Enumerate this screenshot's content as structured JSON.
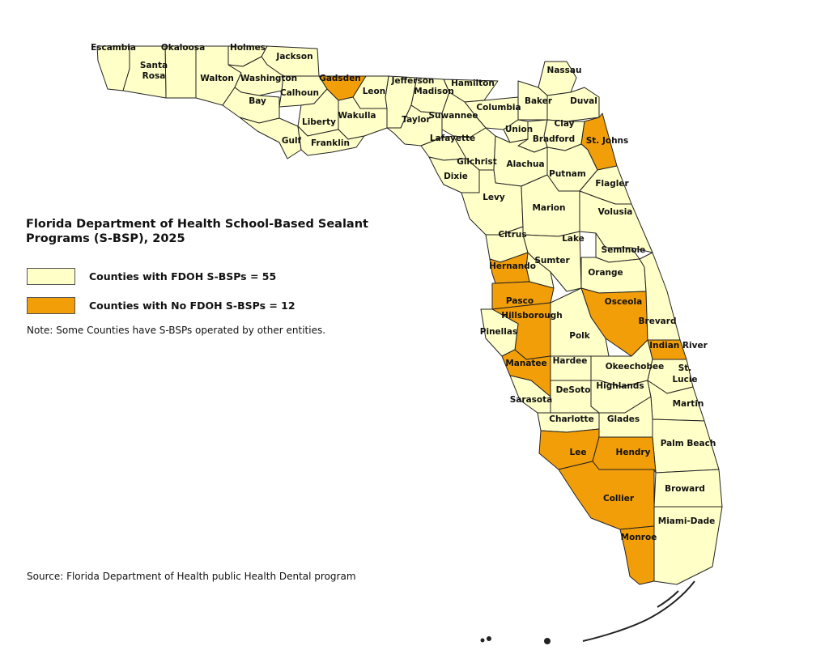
{
  "title": "Florida Department of Health School-Based Sealant Programs (S-BSP), 2025",
  "legend": [
    {
      "label": "Counties with  FDOH S-BSPs = 55",
      "color": "#ffffc8"
    },
    {
      "label": "Counties with No FDOH S-BSPs = 12",
      "color": "#f29e09"
    }
  ],
  "note": "Note: Some Counties have S-BSPs operated by other entities.",
  "source": "Source: Florida Department of Health public Health Dental program",
  "colors": {
    "with_program": "#ffffc8",
    "without_program": "#f29e09",
    "border": "#222222"
  },
  "counties": [
    {
      "name": "Escambia",
      "program": true
    },
    {
      "name": "Okaloosa",
      "program": true
    },
    {
      "name": "Santa Rosa",
      "program": true
    },
    {
      "name": "Holmes",
      "program": true
    },
    {
      "name": "Jackson",
      "program": true
    },
    {
      "name": "Walton",
      "program": true
    },
    {
      "name": "Washington",
      "program": true
    },
    {
      "name": "Gadsden",
      "program": false
    },
    {
      "name": "Jefferson",
      "program": true
    },
    {
      "name": "Hamilton",
      "program": true
    },
    {
      "name": "Nassau",
      "program": true
    },
    {
      "name": "Bay",
      "program": true
    },
    {
      "name": "Calhoun",
      "program": true
    },
    {
      "name": "Leon",
      "program": true
    },
    {
      "name": "Madison",
      "program": true
    },
    {
      "name": "Columbia",
      "program": true
    },
    {
      "name": "Baker",
      "program": true
    },
    {
      "name": "Duval",
      "program": true
    },
    {
      "name": "Liberty",
      "program": true
    },
    {
      "name": "Wakulla",
      "program": true
    },
    {
      "name": "Taylor",
      "program": true
    },
    {
      "name": "Suwannee",
      "program": true
    },
    {
      "name": "Union",
      "program": true
    },
    {
      "name": "Clay",
      "program": true
    },
    {
      "name": "St. Johns",
      "program": false
    },
    {
      "name": "Gulf",
      "program": true
    },
    {
      "name": "Franklin",
      "program": true
    },
    {
      "name": "Lafayette",
      "program": true
    },
    {
      "name": "Bradford",
      "program": true
    },
    {
      "name": "Gilchrist",
      "program": true
    },
    {
      "name": "Alachua",
      "program": true
    },
    {
      "name": "Dixie",
      "program": true
    },
    {
      "name": "Putnam",
      "program": true
    },
    {
      "name": "Flagler",
      "program": true
    },
    {
      "name": "Levy",
      "program": true
    },
    {
      "name": "Marion",
      "program": true
    },
    {
      "name": "Volusia",
      "program": true
    },
    {
      "name": "Citrus",
      "program": true
    },
    {
      "name": "Lake",
      "program": true
    },
    {
      "name": "Seminole",
      "program": true
    },
    {
      "name": "Sumter",
      "program": true
    },
    {
      "name": "Hernando",
      "program": false
    },
    {
      "name": "Orange",
      "program": true
    },
    {
      "name": "Pasco",
      "program": false
    },
    {
      "name": "Osceola",
      "program": false
    },
    {
      "name": "Hillsborough",
      "program": false
    },
    {
      "name": "Brevard",
      "program": true
    },
    {
      "name": "Pinellas",
      "program": true
    },
    {
      "name": "Polk",
      "program": true
    },
    {
      "name": "Indian River",
      "program": false
    },
    {
      "name": "Manatee",
      "program": false
    },
    {
      "name": "Hardee",
      "program": true
    },
    {
      "name": "Okeechobee",
      "program": true
    },
    {
      "name": "St. Lucie",
      "program": true
    },
    {
      "name": "Highlands",
      "program": true
    },
    {
      "name": "DeSoto",
      "program": true
    },
    {
      "name": "Sarasota",
      "program": true
    },
    {
      "name": "Martin",
      "program": true
    },
    {
      "name": "Charlotte",
      "program": true
    },
    {
      "name": "Glades",
      "program": true
    },
    {
      "name": "Palm Beach",
      "program": true
    },
    {
      "name": "Lee",
      "program": false
    },
    {
      "name": "Hendry",
      "program": false
    },
    {
      "name": "Collier",
      "program": false
    },
    {
      "name": "Broward",
      "program": true
    },
    {
      "name": "Miami-Dade",
      "program": true
    },
    {
      "name": "Monroe",
      "program": false
    }
  ]
}
